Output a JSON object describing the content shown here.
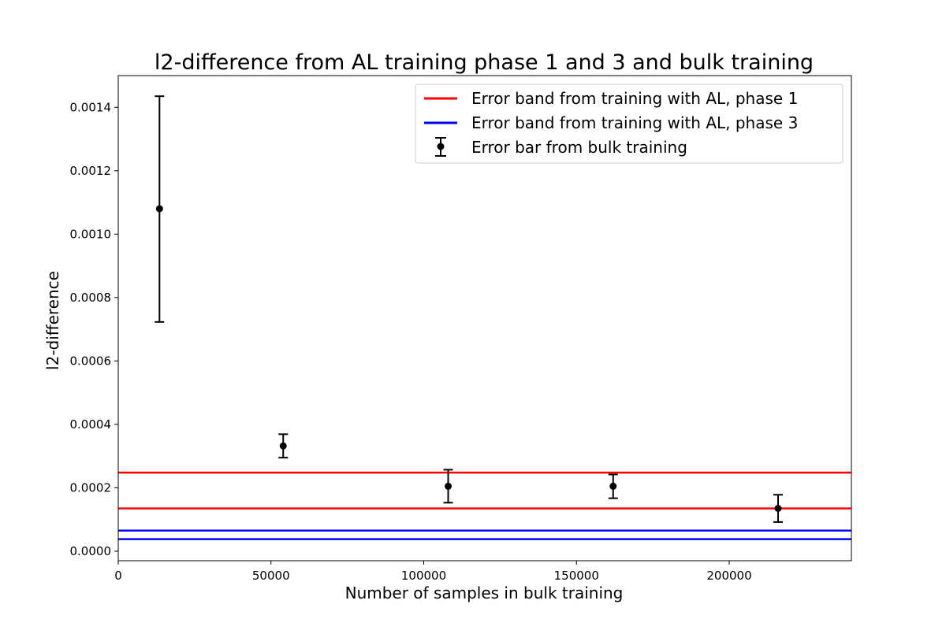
{
  "chart_data": {
    "type": "scatter",
    "title": "l2-difference from AL training phase 1 and 3 and bulk training",
    "xlabel": "Number of samples in bulk training",
    "ylabel": "l2-difference",
    "xlim": [
      0,
      240000
    ],
    "ylim": [
      -3e-05,
      0.0015
    ],
    "x_ticks": [
      0,
      50000,
      100000,
      150000,
      200000
    ],
    "x_tick_labels": [
      "0",
      "50000",
      "100000",
      "150000",
      "200000"
    ],
    "y_ticks": [
      0.0,
      0.0002,
      0.0004,
      0.0006,
      0.0008,
      0.001,
      0.0012,
      0.0014
    ],
    "y_tick_labels": [
      "0.0000",
      "0.0002",
      "0.0004",
      "0.0006",
      "0.0008",
      "0.0010",
      "0.0012",
      "0.0014"
    ],
    "grid": false,
    "legend_position": "top-right",
    "legend": [
      {
        "label": "Error band from training with AL, phase 1",
        "color": "#ff0000",
        "kind": "line"
      },
      {
        "label": "Error band from training with AL, phase 3",
        "color": "#0000ff",
        "kind": "line"
      },
      {
        "label": "Error bar from bulk training",
        "color": "#000000",
        "kind": "errorbar"
      }
    ],
    "bands": [
      {
        "name": "Error band from training with AL, phase 1",
        "color": "#ff0000",
        "values": [
          0.000135,
          0.000248
        ]
      },
      {
        "name": "Error band from training with AL, phase 3",
        "color": "#0000ff",
        "values": [
          3.8e-05,
          6.5e-05
        ]
      }
    ],
    "errorbar_series": {
      "name": "Error bar from bulk training",
      "color": "#000000",
      "points": [
        {
          "x": 13500,
          "y": 0.00108,
          "lower": 0.000723,
          "upper": 0.001435
        },
        {
          "x": 54000,
          "y": 0.000332,
          "lower": 0.000295,
          "upper": 0.000369
        },
        {
          "x": 108000,
          "y": 0.000205,
          "lower": 0.000153,
          "upper": 0.000257
        },
        {
          "x": 162000,
          "y": 0.000205,
          "lower": 0.000167,
          "upper": 0.000242
        },
        {
          "x": 216000,
          "y": 0.000135,
          "lower": 9.2e-05,
          "upper": 0.000178
        }
      ]
    }
  }
}
